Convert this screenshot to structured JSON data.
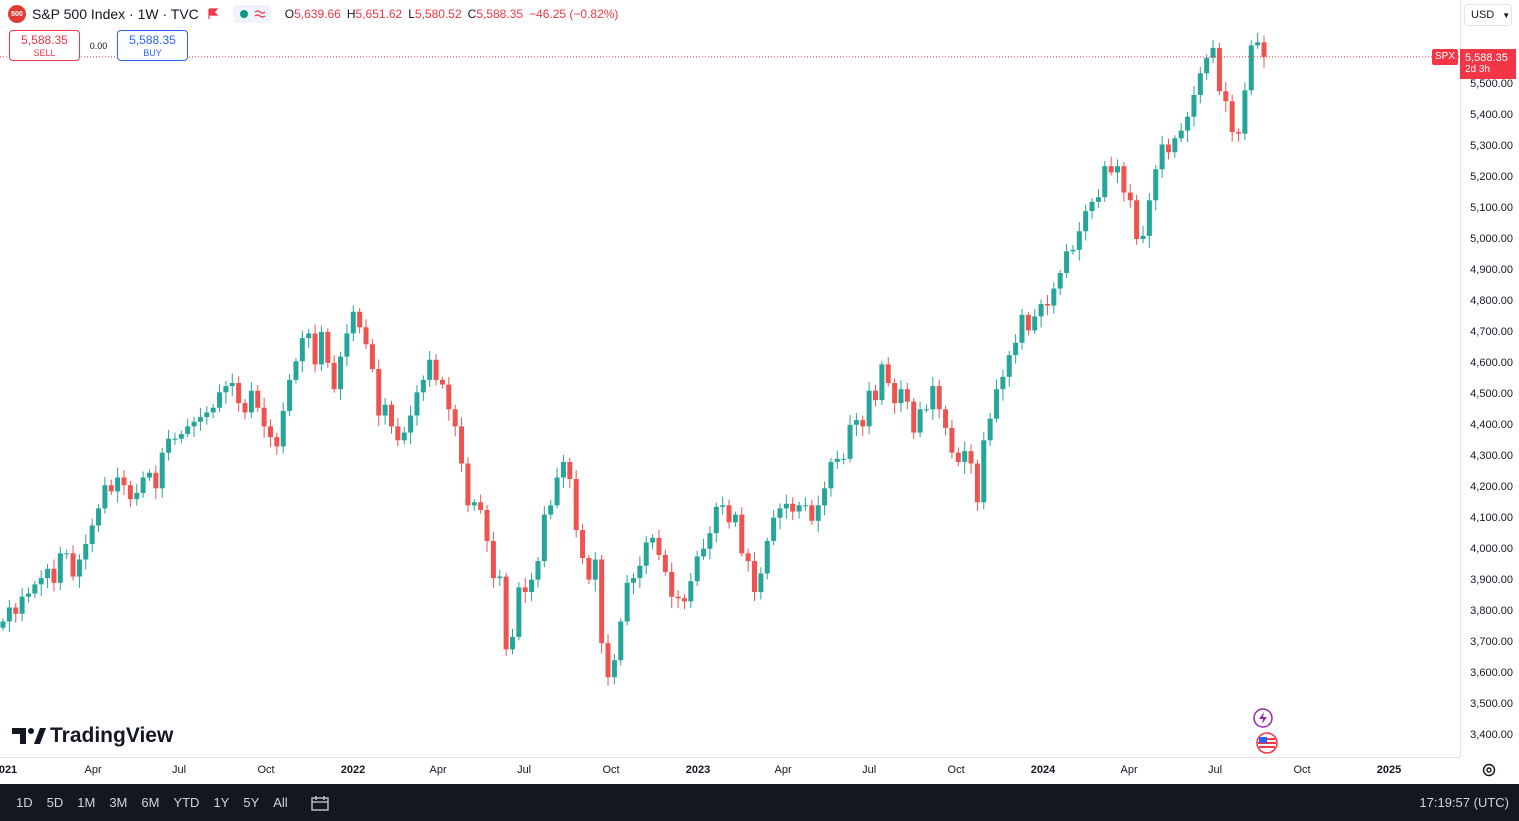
{
  "header": {
    "symbol_logo": "500",
    "title": "S&P 500 Index · 1W · TVC",
    "ohlc": [
      {
        "k": "O",
        "v": "5,639.66"
      },
      {
        "k": "H",
        "v": "5,651.62"
      },
      {
        "k": "L",
        "v": "5,580.52"
      },
      {
        "k": "C",
        "v": "5,588.35"
      },
      {
        "k": "",
        "v": "−46.25 (−0.82%)"
      }
    ]
  },
  "trade": {
    "sell_price": "5,588.35",
    "sell_label": "SELL",
    "spread": "0.00",
    "buy_price": "5,588.35",
    "buy_label": "BUY"
  },
  "currency": "USD",
  "last_price": {
    "tag": "SPX",
    "value": "5,588.35",
    "countdown": "2d 3h"
  },
  "branding": "TradingView",
  "bottom_bar": {
    "ranges": [
      "1D",
      "5D",
      "1M",
      "3M",
      "6M",
      "YTD",
      "1Y",
      "5Y",
      "All"
    ],
    "clock": "17:19:57 (UTC)"
  },
  "colors": {
    "up": "#26a69a",
    "down": "#ef5350",
    "accent": "#f23645"
  },
  "chart_data": {
    "type": "candlestick",
    "ylim": [
      3350,
      5720
    ],
    "y_ticks": [
      3400,
      3500,
      3600,
      3700,
      3800,
      3900,
      4000,
      4100,
      4200,
      4300,
      4400,
      4500,
      4600,
      4700,
      4800,
      4900,
      5000,
      5100,
      5200,
      5300,
      5400,
      5500
    ],
    "y_tick_labels": [
      "3,400.00",
      "3,500.00",
      "3,600.00",
      "3,700.00",
      "3,800.00",
      "3,900.00",
      "4,000.00",
      "4,100.00",
      "4,200.00",
      "4,300.00",
      "4,400.00",
      "4,500.00",
      "4,600.00",
      "4,700.00",
      "4,800.00",
      "4,900.00",
      "5,000.00",
      "5,100.00",
      "5,200.00",
      "5,300.00",
      "5,400.00",
      "5,500.00"
    ],
    "x_ticks": [
      {
        "label": "021",
        "date": "2021-01-01",
        "major": true
      },
      {
        "label": "Apr",
        "date": "2021-04-01"
      },
      {
        "label": "Jul",
        "date": "2021-07-01"
      },
      {
        "label": "Oct",
        "date": "2021-10-01"
      },
      {
        "label": "2022",
        "date": "2022-01-01",
        "major": true
      },
      {
        "label": "Apr",
        "date": "2022-04-01"
      },
      {
        "label": "Jul",
        "date": "2022-07-01"
      },
      {
        "label": "Oct",
        "date": "2022-10-01"
      },
      {
        "label": "2023",
        "date": "2023-01-01",
        "major": true
      },
      {
        "label": "Apr",
        "date": "2023-04-01"
      },
      {
        "label": "Jul",
        "date": "2023-07-01"
      },
      {
        "label": "Oct",
        "date": "2023-10-01"
      },
      {
        "label": "2024",
        "date": "2024-01-01",
        "major": true
      },
      {
        "label": "Apr",
        "date": "2024-04-01"
      },
      {
        "label": "Jul",
        "date": "2024-07-01"
      },
      {
        "label": "Oct",
        "date": "2024-10-01"
      },
      {
        "label": "2025",
        "date": "2025-01-01",
        "major": true
      }
    ],
    "closes": [
      3765,
      3810,
      3790,
      3845,
      3855,
      3885,
      3905,
      3935,
      3890,
      3985,
      3985,
      3910,
      3965,
      4015,
      4075,
      4130,
      4205,
      4185,
      4230,
      4205,
      4160,
      4180,
      4230,
      4245,
      4195,
      4310,
      4355,
      4355,
      4370,
      4395,
      4410,
      4425,
      4440,
      4455,
      4505,
      4525,
      4535,
      4470,
      4440,
      4510,
      4455,
      4395,
      4360,
      4330,
      4445,
      4545,
      4605,
      4680,
      4695,
      4595,
      4700,
      4600,
      4515,
      4620,
      4695,
      4765,
      4715,
      4660,
      4580,
      4430,
      4465,
      4395,
      4350,
      4375,
      4430,
      4505,
      4545,
      4610,
      4545,
      4530,
      4450,
      4395,
      4275,
      4140,
      4150,
      4125,
      4025,
      3905,
      3910,
      3675,
      3715,
      3875,
      3860,
      3900,
      3960,
      4110,
      4140,
      4230,
      4280,
      4225,
      4060,
      3970,
      3900,
      3965,
      3695,
      3585,
      3640,
      3765,
      3890,
      3905,
      3945,
      4020,
      4035,
      3980,
      3925,
      3845,
      3840,
      3830,
      3895,
      3975,
      4000,
      4050,
      4135,
      4140,
      4085,
      4110,
      3985,
      3960,
      3860,
      3920,
      4025,
      4100,
      4130,
      4145,
      4120,
      4140,
      4140,
      4090,
      4140,
      4195,
      4280,
      4290,
      4290,
      4400,
      4415,
      4395,
      4510,
      4480,
      4595,
      4535,
      4470,
      4515,
      4475,
      4375,
      4450,
      4450,
      4525,
      4450,
      4390,
      4310,
      4280,
      4315,
      4275,
      4150,
      4350,
      4420,
      4515,
      4555,
      4625,
      4665,
      4755,
      4705,
      4750,
      4790,
      4785,
      4840,
      4890,
      4960,
      4965,
      5025,
      5090,
      5120,
      5135,
      5235,
      5215,
      5235,
      5150,
      5125,
      5000,
      5010,
      5125,
      5225,
      5305,
      5280,
      5325,
      5350,
      5395,
      5465,
      5535,
      5585,
      5617,
      5477,
      5445,
      5345,
      5340,
      5480,
      5625,
      5635,
      5588
    ],
    "series": [
      {
        "values": "see closes"
      }
    ]
  }
}
